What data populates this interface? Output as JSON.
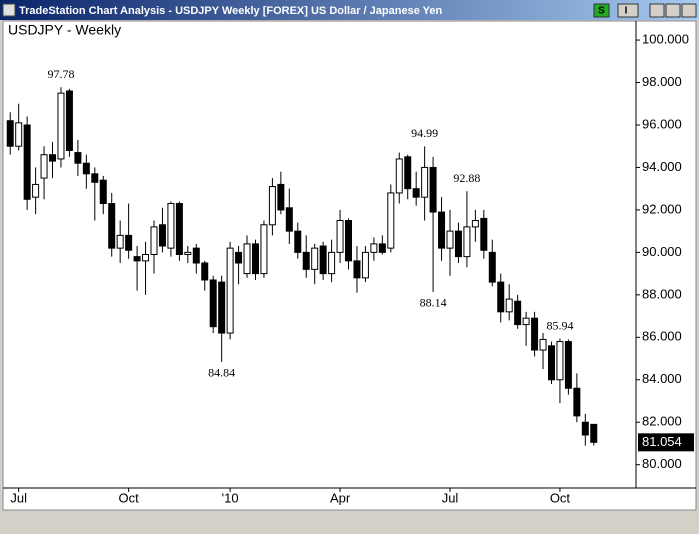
{
  "window": {
    "title": "TradeStation Chart Analysis - USDJPY Weekly [FOREX] US Dollar / Japanese Yen",
    "buttons": [
      "S",
      "I"
    ]
  },
  "chart_data": {
    "type": "candlestick",
    "title": "USDJPY - Weekly",
    "up_color": "#ffffff",
    "down_color": "#000000",
    "grid": false,
    "categories": [
      null,
      "Jul",
      null,
      null,
      null,
      null,
      null,
      null,
      null,
      null,
      null,
      null,
      null,
      null,
      "Oct",
      null,
      null,
      null,
      null,
      null,
      null,
      null,
      null,
      null,
      null,
      null,
      "'10",
      null,
      null,
      null,
      null,
      null,
      null,
      null,
      null,
      null,
      null,
      null,
      null,
      "Apr",
      null,
      null,
      null,
      null,
      null,
      null,
      null,
      null,
      null,
      null,
      null,
      null,
      "Jul",
      null,
      null,
      null,
      null,
      null,
      null,
      null,
      null,
      null,
      null,
      null,
      null,
      "Oct",
      null,
      null,
      null,
      null
    ],
    "open": [
      96.2,
      95.0,
      96.0,
      92.6,
      93.5,
      94.6,
      94.4,
      97.6,
      94.7,
      94.2,
      93.7,
      93.4,
      92.3,
      90.2,
      90.8,
      89.8,
      89.6,
      89.9,
      91.3,
      90.2,
      92.3,
      89.9,
      90.2,
      89.5,
      88.7,
      88.6,
      86.2,
      90.0,
      89.0,
      90.4,
      89.0,
      91.3,
      93.2,
      92.1,
      91.0,
      90.0,
      89.2,
      90.3,
      89.0,
      90.0,
      91.5,
      89.6,
      88.8,
      90.0,
      90.4,
      90.2,
      92.8,
      94.5,
      93.0,
      92.6,
      94.0,
      91.9,
      90.2,
      91.0,
      89.8,
      91.2,
      91.6,
      90.0,
      88.6,
      87.2,
      87.7,
      86.6,
      86.9,
      85.4,
      85.6,
      84.0,
      85.8,
      83.6,
      82.0,
      81.9
    ],
    "high": [
      96.6,
      97.0,
      96.4,
      94.0,
      95.0,
      95.2,
      97.78,
      97.7,
      95.3,
      94.6,
      94.0,
      93.6,
      92.8,
      91.5,
      92.3,
      90.3,
      90.5,
      91.5,
      92.1,
      92.4,
      92.4,
      90.3,
      90.4,
      89.6,
      88.9,
      88.9,
      90.5,
      90.3,
      90.8,
      90.6,
      91.5,
      93.5,
      93.8,
      93.0,
      91.4,
      90.8,
      90.4,
      90.5,
      90.6,
      92.0,
      91.6,
      90.3,
      90.3,
      90.7,
      90.8,
      93.2,
      94.7,
      94.6,
      93.8,
      94.99,
      94.5,
      92.6,
      92.0,
      91.4,
      92.88,
      92.0,
      92.0,
      90.6,
      89.0,
      88.5,
      88.0,
      87.2,
      87.2,
      86.2,
      85.8,
      85.94,
      85.9,
      84.3,
      82.4,
      81.8
    ],
    "low": [
      94.6,
      94.8,
      92.0,
      91.8,
      92.5,
      93.5,
      94.0,
      94.5,
      93.6,
      93.0,
      91.5,
      91.8,
      89.8,
      89.5,
      89.7,
      88.2,
      88.0,
      89.0,
      90.0,
      89.8,
      89.6,
      89.5,
      89.0,
      88.2,
      86.2,
      84.84,
      85.9,
      88.5,
      88.8,
      88.7,
      88.8,
      90.8,
      91.8,
      90.4,
      89.7,
      88.8,
      88.5,
      88.7,
      88.6,
      89.5,
      89.2,
      88.1,
      88.6,
      89.6,
      89.9,
      90.0,
      92.3,
      92.5,
      92.2,
      91.5,
      88.14,
      89.6,
      88.9,
      89.5,
      89.3,
      90.5,
      89.7,
      88.4,
      86.7,
      86.8,
      86.4,
      85.6,
      85.1,
      84.5,
      83.8,
      82.9,
      83.3,
      82.0,
      80.9,
      80.9
    ],
    "close": [
      95.0,
      96.1,
      92.5,
      93.2,
      94.6,
      94.3,
      97.5,
      94.8,
      94.2,
      93.7,
      93.3,
      92.3,
      90.2,
      90.8,
      90.1,
      89.6,
      89.9,
      91.2,
      90.3,
      92.3,
      89.9,
      90.0,
      89.5,
      88.7,
      86.5,
      86.2,
      90.2,
      89.5,
      90.4,
      89.0,
      91.3,
      93.1,
      92.0,
      91.0,
      90.0,
      89.2,
      90.2,
      89.0,
      90.0,
      91.5,
      89.6,
      88.8,
      90.0,
      90.4,
      90.0,
      92.8,
      94.4,
      93.0,
      92.6,
      94.0,
      91.9,
      90.2,
      91.0,
      89.8,
      91.2,
      91.5,
      90.1,
      88.6,
      87.2,
      87.8,
      86.6,
      86.9,
      85.4,
      85.9,
      84.0,
      85.8,
      83.6,
      82.3,
      81.4,
      81.054
    ],
    "ylim": [
      78.95,
      100.85
    ],
    "yticks": [
      {
        "value": 80,
        "label": "80.000"
      },
      {
        "value": 82,
        "label": "82.000"
      },
      {
        "value": 84,
        "label": "84.000"
      },
      {
        "value": 86,
        "label": "86.000"
      },
      {
        "value": 88,
        "label": "88.000"
      },
      {
        "value": 90,
        "label": "90.000"
      },
      {
        "value": 92,
        "label": "92.000"
      },
      {
        "value": 94,
        "label": "94.000"
      },
      {
        "value": 96,
        "label": "96.000"
      },
      {
        "value": 98,
        "label": "98.000"
      },
      {
        "value": 100,
        "label": "100.000"
      }
    ]
  }
}
